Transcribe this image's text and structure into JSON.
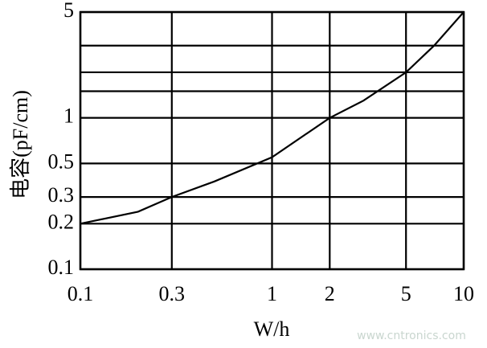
{
  "chart_data": {
    "type": "line",
    "log_x": true,
    "log_y": true,
    "grid": true,
    "y_label": "电容(pF/cm)",
    "x_label": "W/h",
    "watermark": "www.cntronics.com",
    "xlim": [
      0.1,
      10
    ],
    "xticks": [
      0.1,
      0.3,
      1,
      2,
      5,
      10
    ],
    "ylim": [
      0.1,
      5
    ],
    "yticks": [
      0.1,
      0.2,
      0.3,
      0.5,
      1,
      5
    ],
    "minor_yticks": [
      1.5,
      2,
      3
    ],
    "series": [
      {
        "color": "#000000",
        "x": [
          0.1,
          0.2,
          0.3,
          0.5,
          1,
          2,
          3,
          5,
          7,
          10
        ],
        "values": [
          0.2,
          0.24,
          0.3,
          0.38,
          0.55,
          1,
          1.3,
          2,
          3,
          5
        ]
      }
    ]
  }
}
